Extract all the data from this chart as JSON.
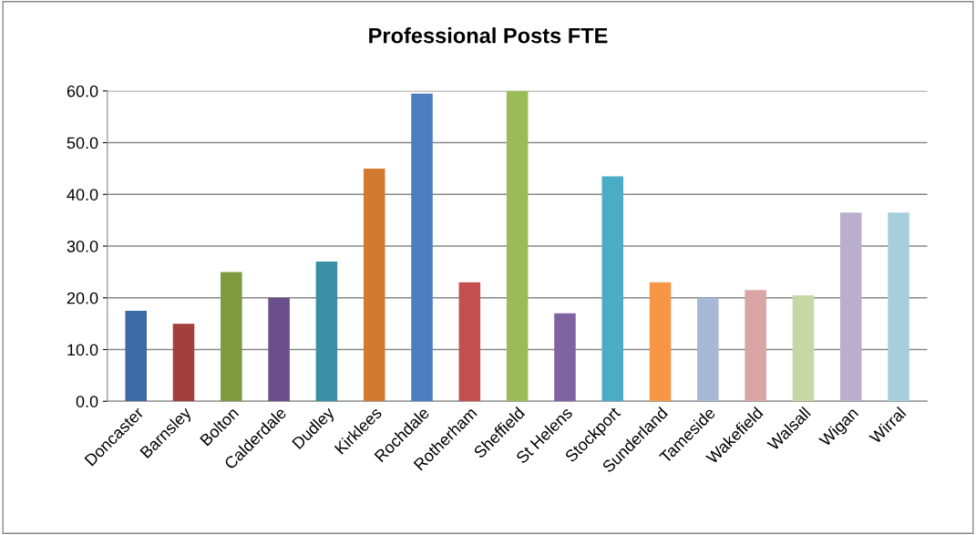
{
  "chart_data": {
    "type": "bar",
    "title": "Professional Posts FTE",
    "categories": [
      "Doncaster",
      "Barnsley",
      "Bolton",
      "Calderdale",
      "Dudley",
      "Kirklees",
      "Rochdale",
      "Rotherham",
      "Sheffield",
      "St Helens",
      "Stockport",
      "Sunderland",
      "Tameside",
      "Wakefield",
      "Walsall",
      "Wigan",
      "Wirral"
    ],
    "values": [
      17.5,
      15.0,
      25.0,
      20.0,
      27.0,
      45.0,
      59.5,
      23.0,
      60.0,
      17.0,
      43.5,
      23.0,
      20.0,
      21.5,
      20.5,
      36.5,
      36.5
    ],
    "colors": [
      "#3c6aa4",
      "#a33f3c",
      "#7e9a3e",
      "#6a4f8a",
      "#3b8fa5",
      "#d27b30",
      "#4a7ec0",
      "#c44f4d",
      "#9bbb59",
      "#8064a2",
      "#4bacc6",
      "#f79646",
      "#a8b9d8",
      "#d9a5a5",
      "#c4d7a4",
      "#b9aecb",
      "#a6cfdc"
    ],
    "ylim": [
      0,
      60
    ],
    "yticks": [
      {
        "value": 0,
        "label": "0.0"
      },
      {
        "value": 10,
        "label": "10.0"
      },
      {
        "value": 20,
        "label": "20.0"
      },
      {
        "value": 30,
        "label": "30.0"
      },
      {
        "value": 40,
        "label": "40.0"
      },
      {
        "value": 50,
        "label": "50.0"
      },
      {
        "value": 60,
        "label": "60.0"
      }
    ],
    "grid": "y",
    "legend": false
  }
}
